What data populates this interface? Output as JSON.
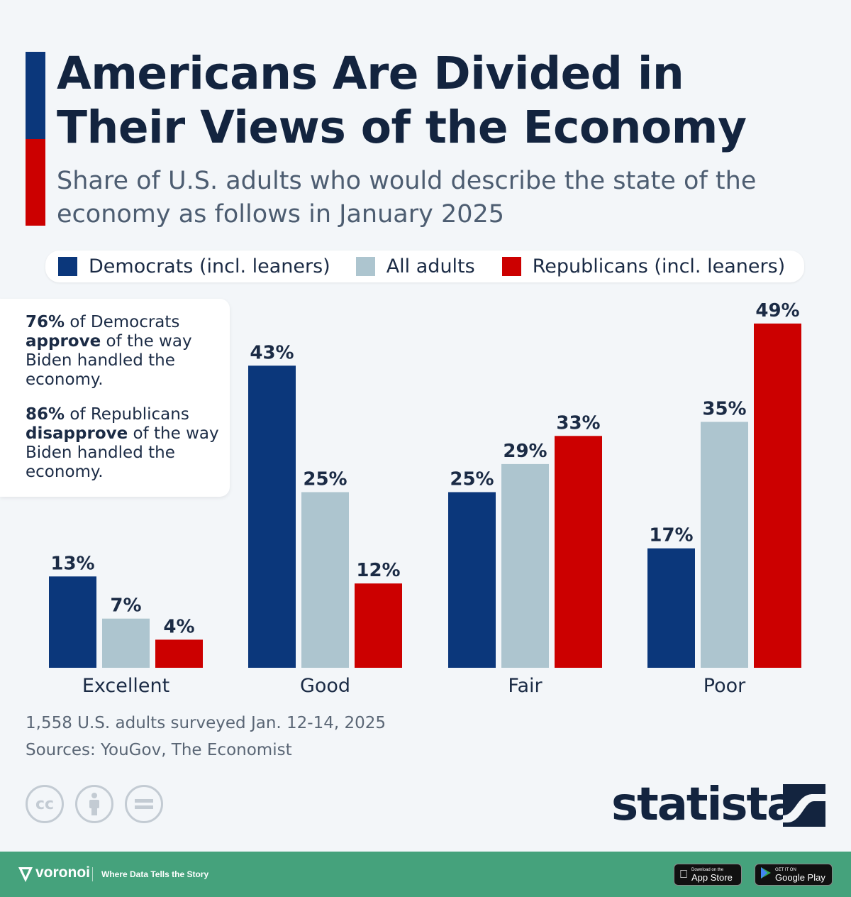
{
  "title": "Americans Are Divided in Their Views of the Economy",
  "subtitle": "Share of U.S. adults who would describe the state of the economy as follows in January 2025",
  "colors": {
    "democrats": "#0b377b",
    "all_adults": "#adc5cf",
    "republicans": "#cc0000",
    "accent_blue": "#0b377b",
    "accent_red": "#cc0000",
    "footer_green": "#45a27c"
  },
  "legend": [
    {
      "label": "Democrats (incl. leaners)",
      "color": "#0b377b"
    },
    {
      "label": "All adults",
      "color": "#adc5cf"
    },
    {
      "label": "Republicans (incl. leaners)",
      "color": "#cc0000"
    }
  ],
  "note": {
    "line1_bold": "76%",
    "line1_text": " of Democrats ",
    "line1_bold2": "approve",
    "line1_text2": " of the way Biden handled the economy.",
    "line2_bold": "86%",
    "line2_text": " of Republicans ",
    "line2_bold2": "disapprove",
    "line2_text2": " of the way Biden handled the economy."
  },
  "chart_data": {
    "type": "bar",
    "categories": [
      "Excellent",
      "Good",
      "Fair",
      "Poor"
    ],
    "series": [
      {
        "name": "Democrats (incl. leaners)",
        "values": [
          13,
          43,
          25,
          17
        ],
        "color": "#0b377b"
      },
      {
        "name": "All adults",
        "values": [
          7,
          25,
          29,
          35
        ],
        "color": "#adc5cf"
      },
      {
        "name": "Republicans (incl. leaners)",
        "values": [
          4,
          12,
          33,
          49
        ],
        "color": "#cc0000"
      }
    ],
    "value_suffix": "%",
    "ylim": [
      0,
      49
    ],
    "grid": false,
    "legend_position": "top"
  },
  "footnote": {
    "survey": "1,558 U.S. adults surveyed Jan. 12-14, 2025",
    "sources": "Sources: YouGov, The Economist"
  },
  "license_icons": [
    "cc-icon",
    "by-icon",
    "nd-icon"
  ],
  "brand": "statista",
  "footer": {
    "logo": "voronoi",
    "tagline": "Where Data Tells the Story",
    "app_store_small": "Download on the",
    "app_store_big": "App Store",
    "google_play_small": "GET IT ON",
    "google_play_big": "Google Play"
  }
}
